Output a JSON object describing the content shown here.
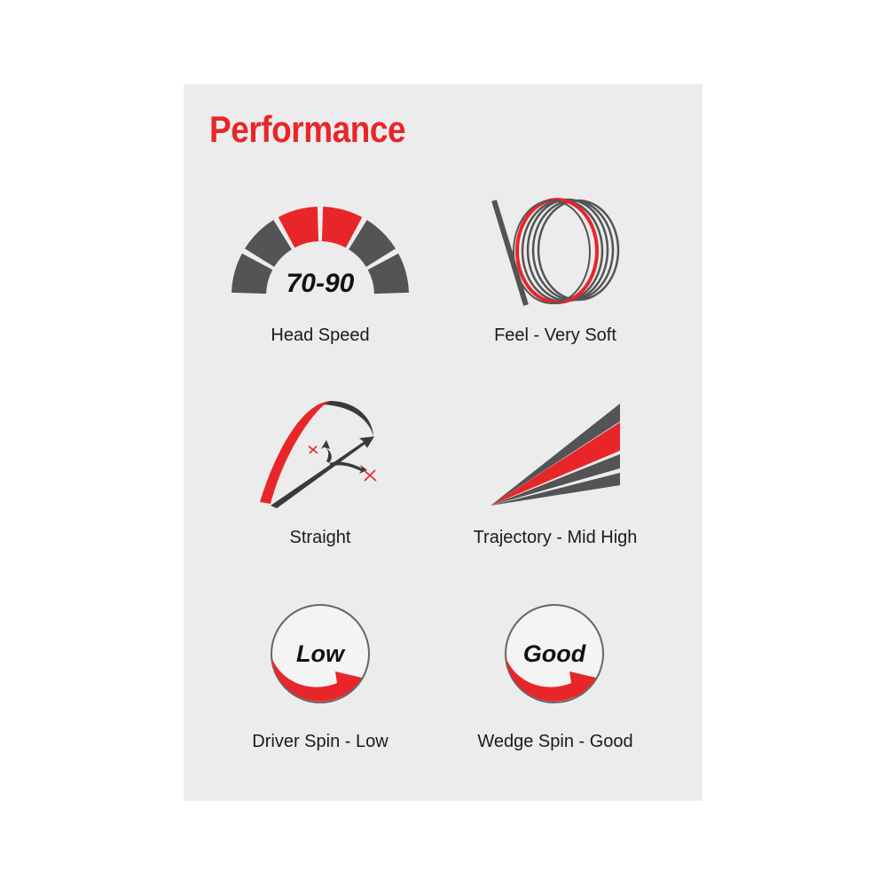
{
  "title": "Performance",
  "colors": {
    "accent": "#e8262a",
    "dark": "#545456",
    "panel": "#ececec"
  },
  "items": [
    {
      "label": "Head Speed",
      "icon": "speedometer-icon",
      "value": "70-90"
    },
    {
      "label": "Feel - Very Soft",
      "icon": "ball-compression-icon"
    },
    {
      "label": "Straight",
      "icon": "ball-flight-straight-icon"
    },
    {
      "label": "Trajectory - Mid High",
      "icon": "trajectory-icon"
    },
    {
      "label": "Driver Spin - Low",
      "icon": "spin-dial-icon",
      "value": "Low"
    },
    {
      "label": "Wedge Spin - Good",
      "icon": "spin-dial-icon",
      "value": "Good"
    }
  ]
}
